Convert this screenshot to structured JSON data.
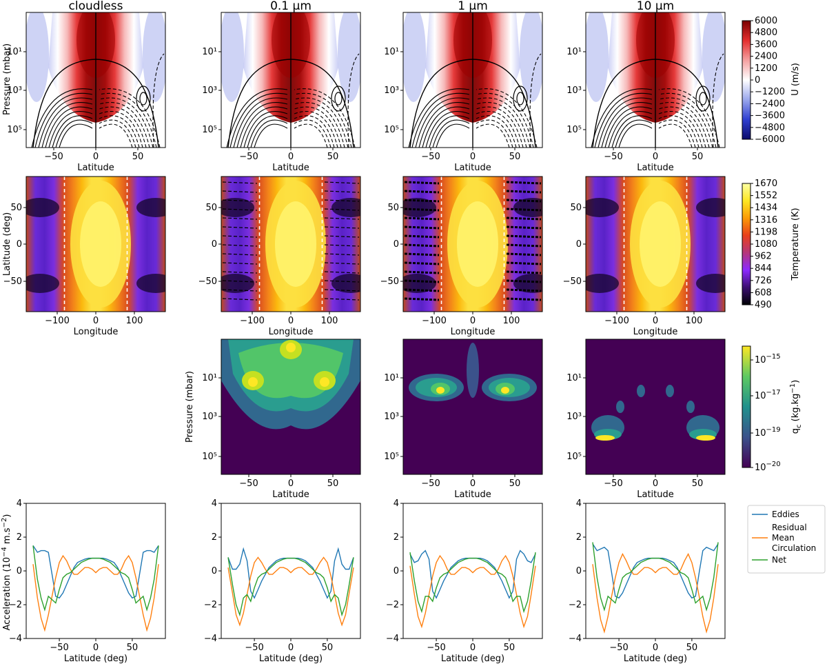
{
  "figure": {
    "columns": [
      "cloudless",
      "0.1 µm",
      "1 µm",
      "10 µm"
    ]
  },
  "chart_data": [
    {
      "type": "heatmap",
      "name": "zonal-wind",
      "xlabel": "Latitude",
      "ylabel": "Pressure (mbar)",
      "xlim": [
        -90,
        90
      ],
      "xticks": [
        "−50",
        "0",
        "50"
      ],
      "yticks": [
        "10¹",
        "10³",
        "10⁵"
      ],
      "colorbar": {
        "label": "U (m/s)",
        "range": [
          -6000,
          6000
        ],
        "ticks": [
          "6000",
          "4800",
          "3600",
          "2400",
          "1200",
          "0",
          "−1200",
          "−2400",
          "−3600",
          "−4800",
          "−6000"
        ],
        "colors": [
          "#0b0b6b",
          "#2f3fd0",
          "#9aa7ec",
          "#ffffff",
          "#f4a0a0",
          "#e32e2e",
          "#7a0000"
        ]
      },
      "description_values": {
        "jet_peak_ms": 6000,
        "jet_latitude_deg": 0
      }
    },
    {
      "type": "heatmap",
      "name": "temperature-map",
      "xlabel": "Longitude",
      "ylabel": "Latitude (deg)",
      "xlim": [
        -180,
        180
      ],
      "ylim": [
        -90,
        90
      ],
      "xticks": [
        "−100",
        "0",
        "100"
      ],
      "yticks": [
        "50",
        "0",
        "−50"
      ],
      "terminators_deg": [
        -90,
        90
      ],
      "colorbar": {
        "label": "Temperature (K)",
        "range": [
          490,
          1670
        ],
        "ticks": [
          "1670",
          "1552",
          "1434",
          "1316",
          "1198",
          "1080",
          "962",
          "844",
          "726",
          "608",
          "490"
        ],
        "colors": [
          "#000004",
          "#3b0f70",
          "#8c29ff",
          "#b5367a",
          "#e8401c",
          "#fb9a06",
          "#fde724",
          "#fcffa4"
        ]
      }
    },
    {
      "type": "heatmap",
      "name": "cloud-mass-mixing-ratio",
      "xlabel": "Latitude",
      "ylabel": "Pressure (mbar)",
      "panels": [
        "0.1 µm",
        "1 µm",
        "10 µm"
      ],
      "xticks": [
        "−50",
        "0",
        "50"
      ],
      "yticks": [
        "10¹",
        "10³",
        "10⁵"
      ],
      "colorbar": {
        "label_main": "q",
        "label_sub": "c",
        "label_rest": " (kg.kg",
        "label_exp": "−1",
        "label_end": ")",
        "tick_exponents": [
          "−15",
          "−17",
          "−19",
          "−20"
        ],
        "tick_values": [
          1e-15,
          1e-17,
          1e-19,
          1e-20
        ],
        "colors": [
          "#440154",
          "#3b528b",
          "#21918c",
          "#5ec962",
          "#fde725"
        ]
      }
    },
    {
      "type": "line",
      "name": "acceleration",
      "xlabel": "Latitude (deg)",
      "ylabel_pre": "Acceleration (10",
      "ylabel_exp1": "−4",
      "ylabel_mid": " m.s",
      "ylabel_exp2": "−2",
      "ylabel_end": ")",
      "xlim": [
        -90,
        90
      ],
      "ylim": [
        -4,
        4
      ],
      "xticks": [
        "−50",
        "0",
        "50"
      ],
      "yticks": [
        "4",
        "2",
        "0",
        "−2",
        "−4"
      ],
      "x": [
        -86,
        -80,
        -75,
        -70,
        -65,
        -60,
        -55,
        -50,
        -45,
        -40,
        -35,
        -30,
        -25,
        -20,
        -15,
        -10,
        -5,
        0,
        5,
        10,
        15,
        20,
        25,
        30,
        35,
        40,
        45,
        50,
        55,
        60,
        65,
        70,
        75,
        80,
        86
      ],
      "panels": [
        {
          "name": "cloudless",
          "series": [
            {
              "name": "Eddies",
              "color": "#1f77b4",
              "values": [
                1.5,
                1.1,
                1.2,
                1.2,
                1.1,
                -0.2,
                -1.5,
                -1.6,
                -1.3,
                -0.8,
                -0.3,
                0.2,
                0.5,
                0.6,
                0.7,
                0.75,
                0.75,
                0.75,
                0.75,
                0.75,
                0.7,
                0.6,
                0.5,
                0.2,
                -0.3,
                -0.8,
                -1.3,
                -1.6,
                -1.5,
                -0.2,
                1.1,
                1.2,
                1.2,
                1.1,
                1.5
              ]
            },
            {
              "name": "Residual Mean Circulation",
              "color": "#ff7f0e",
              "values": [
                0.4,
                -1.6,
                -2.8,
                -3.5,
                -2.6,
                -1.5,
                -0.4,
                0.5,
                0.9,
                0.6,
                0.1,
                -0.2,
                -0.2,
                0.0,
                0.2,
                0.2,
                0.1,
                -0.1,
                0.1,
                0.2,
                0.2,
                0.0,
                -0.2,
                -0.2,
                0.1,
                0.6,
                0.9,
                0.5,
                -0.4,
                -1.5,
                -2.6,
                -3.5,
                -2.8,
                -1.6,
                0.4
              ]
            },
            {
              "name": "Net",
              "color": "#2ca02c",
              "values": [
                1.5,
                -0.5,
                -1.6,
                -2.3,
                -1.5,
                -1.7,
                -1.9,
                -1.1,
                -0.4,
                -0.2,
                -0.1,
                0.1,
                0.3,
                0.5,
                0.6,
                0.7,
                0.75,
                0.75,
                0.75,
                0.7,
                0.6,
                0.5,
                0.3,
                0.1,
                -0.1,
                -0.2,
                -0.4,
                -1.1,
                -1.9,
                -1.7,
                -1.5,
                -2.3,
                -1.6,
                -0.5,
                1.5
              ]
            }
          ]
        },
        {
          "name": "0.1 µm",
          "series": [
            {
              "name": "Eddies",
              "color": "#1f77b4",
              "values": [
                0.8,
                0.1,
                0.1,
                0.4,
                1.3,
                0.6,
                -1.2,
                -1.6,
                -1.1,
                -0.6,
                -0.2,
                0.2,
                0.4,
                0.6,
                0.7,
                0.75,
                0.75,
                0.75,
                0.75,
                0.75,
                0.7,
                0.6,
                0.4,
                0.2,
                -0.2,
                -0.6,
                -1.1,
                -1.6,
                -1.2,
                0.6,
                1.3,
                0.4,
                0.1,
                0.1,
                0.8
              ]
            },
            {
              "name": "Residual Mean Circulation",
              "color": "#ff7f0e",
              "values": [
                0.2,
                -1.3,
                -2.6,
                -3.2,
                -2.5,
                -1.4,
                -0.3,
                0.5,
                0.8,
                0.5,
                0.1,
                -0.2,
                -0.2,
                0.0,
                0.2,
                0.2,
                0.1,
                -0.1,
                0.1,
                0.2,
                0.2,
                0.0,
                -0.2,
                -0.2,
                0.1,
                0.5,
                0.8,
                0.5,
                -0.3,
                -1.4,
                -2.5,
                -3.2,
                -2.6,
                -1.3,
                0.2
              ]
            },
            {
              "name": "Net",
              "color": "#2ca02c",
              "values": [
                0.8,
                -0.8,
                -2.0,
                -2.6,
                -1.6,
                -1.4,
                -1.8,
                -1.0,
                -0.4,
                -0.2,
                -0.1,
                0.1,
                0.3,
                0.5,
                0.6,
                0.7,
                0.75,
                0.75,
                0.75,
                0.7,
                0.6,
                0.5,
                0.3,
                0.1,
                -0.1,
                -0.2,
                -0.4,
                -1.0,
                -1.8,
                -1.4,
                -1.6,
                -2.6,
                -2.0,
                -0.8,
                0.8
              ]
            }
          ]
        },
        {
          "name": "1 µm",
          "series": [
            {
              "name": "Eddies",
              "color": "#1f77b4",
              "values": [
                1.0,
                0.5,
                0.6,
                1.0,
                1.2,
                0.7,
                -1.2,
                -1.6,
                -1.1,
                -0.6,
                -0.2,
                0.2,
                0.4,
                0.6,
                0.7,
                0.75,
                0.75,
                0.75,
                0.75,
                0.75,
                0.7,
                0.6,
                0.4,
                0.2,
                -0.2,
                -0.6,
                -1.1,
                -1.6,
                -1.2,
                0.7,
                1.2,
                1.0,
                0.6,
                0.5,
                1.0
              ]
            },
            {
              "name": "Residual Mean Circulation",
              "color": "#ff7f0e",
              "values": [
                0.3,
                -1.4,
                -2.7,
                -3.3,
                -2.5,
                -1.4,
                -0.3,
                0.5,
                0.9,
                0.6,
                0.1,
                -0.2,
                -0.2,
                0.0,
                0.2,
                0.2,
                0.1,
                -0.1,
                0.1,
                0.2,
                0.2,
                0.0,
                -0.2,
                -0.2,
                0.1,
                0.6,
                0.9,
                0.5,
                -0.3,
                -1.4,
                -2.5,
                -3.3,
                -2.7,
                -1.4,
                0.3
              ]
            },
            {
              "name": "Net",
              "color": "#2ca02c",
              "values": [
                1.1,
                -0.6,
                -1.8,
                -2.4,
                -1.5,
                -1.5,
                -1.8,
                -1.0,
                -0.4,
                -0.2,
                -0.1,
                0.1,
                0.3,
                0.5,
                0.6,
                0.7,
                0.75,
                0.75,
                0.75,
                0.7,
                0.6,
                0.5,
                0.3,
                0.1,
                -0.1,
                -0.2,
                -0.4,
                -1.0,
                -1.8,
                -1.5,
                -1.5,
                -2.4,
                -1.8,
                -0.6,
                1.1
              ]
            }
          ]
        },
        {
          "name": "10 µm",
          "series": [
            {
              "name": "Eddies",
              "color": "#1f77b4",
              "values": [
                1.6,
                1.2,
                1.3,
                1.4,
                1.2,
                -0.1,
                -1.5,
                -1.6,
                -1.3,
                -0.8,
                -0.3,
                0.2,
                0.5,
                0.6,
                0.7,
                0.75,
                0.75,
                0.75,
                0.75,
                0.75,
                0.7,
                0.6,
                0.5,
                0.2,
                -0.3,
                -0.8,
                -1.3,
                -1.6,
                -1.5,
                -0.1,
                1.2,
                1.4,
                1.3,
                1.2,
                1.6
              ]
            },
            {
              "name": "Residual Mean Circulation",
              "color": "#ff7f0e",
              "values": [
                0.4,
                -1.6,
                -2.9,
                -3.6,
                -2.7,
                -1.5,
                -0.4,
                0.5,
                1.0,
                0.6,
                0.1,
                -0.2,
                -0.2,
                0.0,
                0.2,
                0.2,
                0.1,
                -0.1,
                0.1,
                0.2,
                0.2,
                0.0,
                -0.2,
                -0.2,
                0.1,
                0.6,
                1.0,
                0.5,
                -0.4,
                -1.5,
                -2.7,
                -3.6,
                -2.9,
                -1.6,
                0.4
              ]
            },
            {
              "name": "Net",
              "color": "#2ca02c",
              "values": [
                1.7,
                -0.4,
                -1.6,
                -2.3,
                -1.5,
                -1.7,
                -1.9,
                -1.1,
                -0.4,
                -0.2,
                -0.1,
                0.1,
                0.3,
                0.5,
                0.6,
                0.7,
                0.75,
                0.75,
                0.75,
                0.7,
                0.6,
                0.5,
                0.3,
                0.1,
                -0.1,
                -0.2,
                -0.4,
                -1.1,
                -1.9,
                -1.7,
                -1.5,
                -2.3,
                -1.6,
                -0.4,
                1.7
              ]
            }
          ]
        }
      ],
      "legend": {
        "placement": "right",
        "entries": [
          {
            "lines": [
              "Eddies"
            ],
            "color": "#1f77b4"
          },
          {
            "lines": [
              "Residual",
              "Mean",
              "Circulation"
            ],
            "color": "#ff7f0e"
          },
          {
            "lines": [
              "Net"
            ],
            "color": "#2ca02c"
          }
        ]
      }
    }
  ]
}
